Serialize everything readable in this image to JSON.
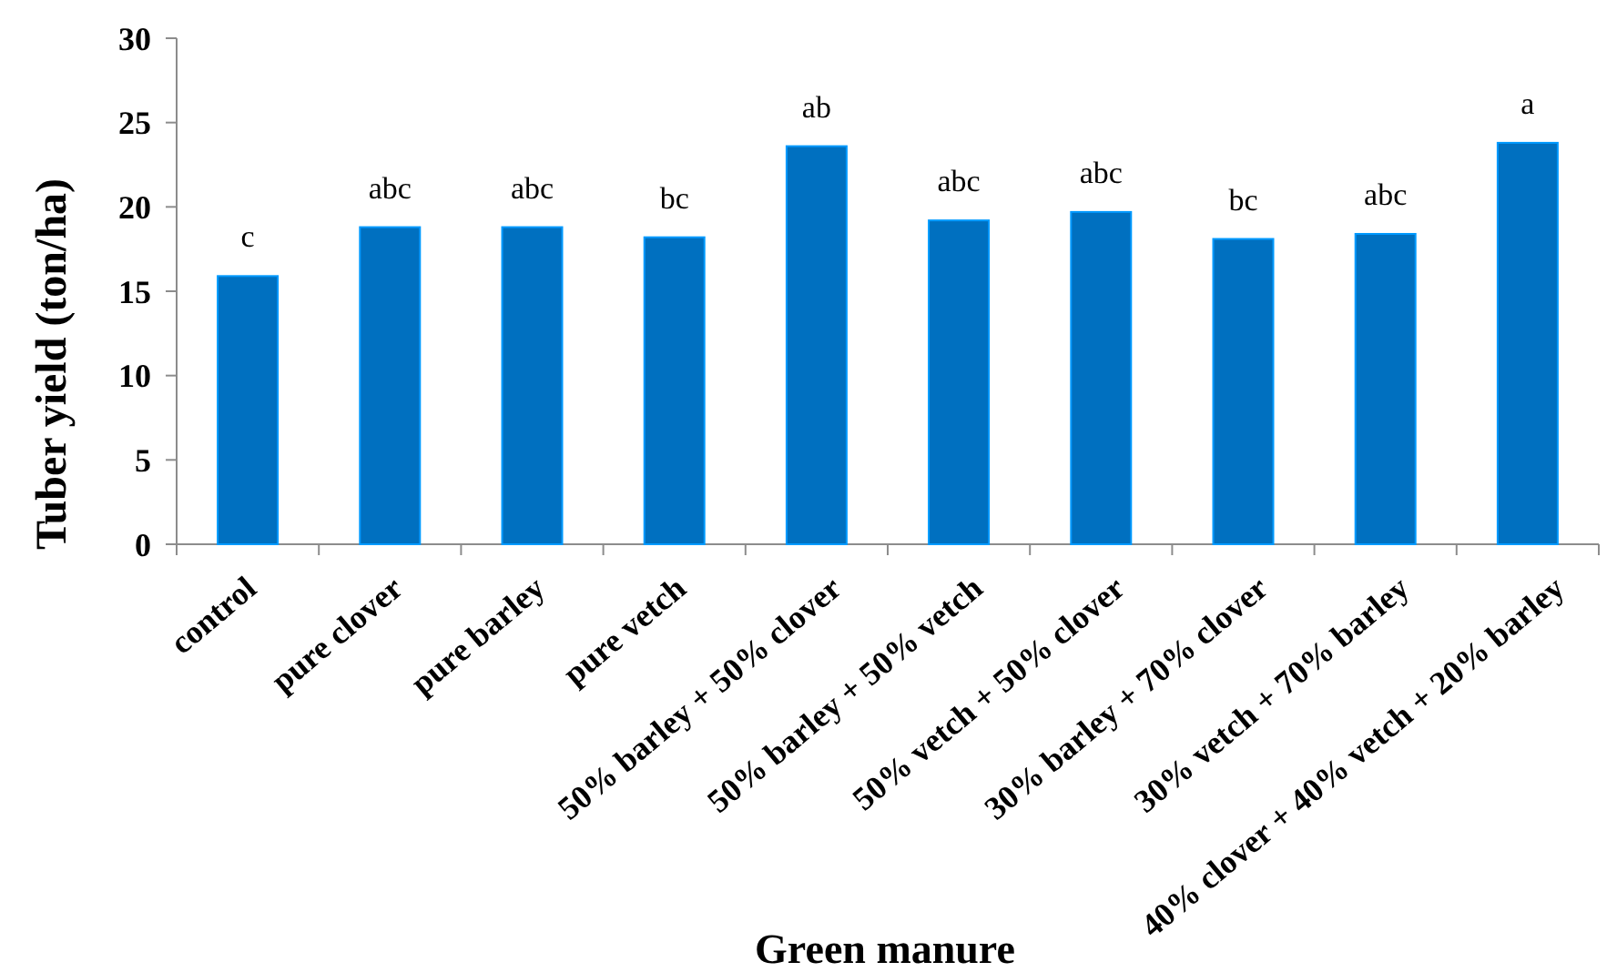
{
  "chart_data": {
    "type": "bar",
    "xlabel": "Green manure",
    "ylabel": "Tuber yield (ton/ha)",
    "categories": [
      "control",
      "pure clover",
      "pure barley",
      "pure vetch",
      "50% barley + 50% clover",
      "50% barley + 50% vetch",
      "50% vetch + 50% clover",
      "30% barley + 70% clover",
      "30% vetch + 70% barley",
      "40% clover + 40% vetch + 20% barley"
    ],
    "values": [
      15.9,
      18.8,
      18.8,
      18.2,
      23.6,
      19.2,
      19.7,
      18.1,
      18.4,
      23.8
    ],
    "color": "#0070c0",
    "ylim": [
      0,
      30
    ],
    "yticks": [
      0,
      5,
      10,
      15,
      20,
      25,
      30
    ],
    "annotations": [
      {
        "text": "c",
        "x": "control",
        "y": 15.9
      },
      {
        "text": "abc",
        "x": "pure clover",
        "y": 18.8
      },
      {
        "text": "abc",
        "x": "pure barley",
        "y": 18.8
      },
      {
        "text": "bc",
        "x": "pure vetch",
        "y": 18.2
      },
      {
        "text": "ab",
        "x": "50% barley + 50% clover",
        "y": 23.6
      },
      {
        "text": "abc",
        "x": "50% barley + 50% vetch",
        "y": 19.2
      },
      {
        "text": "abc",
        "x": "50% vetch + 50% clover",
        "y": 19.7
      },
      {
        "text": "bc",
        "x": "30% barley + 70% clover",
        "y": 18.1
      },
      {
        "text": "abc",
        "x": "30% vetch + 70% barley",
        "y": 18.4
      },
      {
        "text": "a",
        "x": "40% clover + 40% vetch + 20% barley",
        "y": 23.8
      }
    ]
  }
}
